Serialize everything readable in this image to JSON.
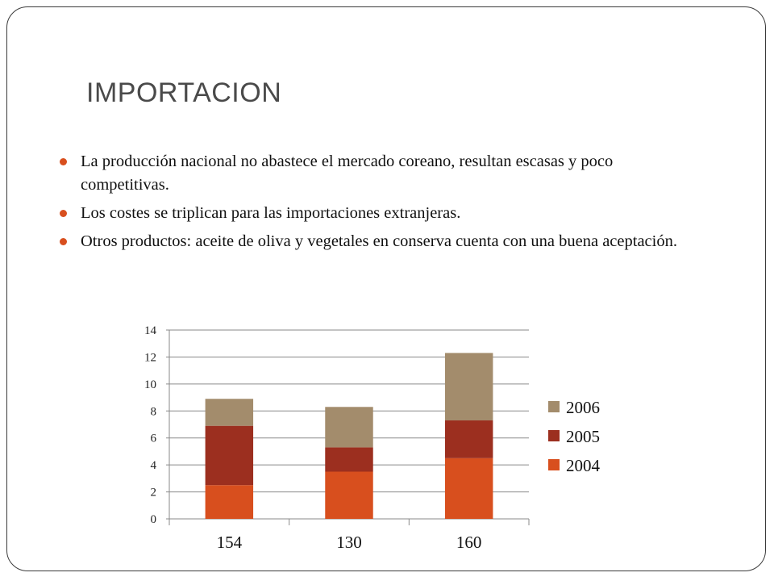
{
  "slide": {
    "title": "IMPORTACION",
    "bullets": [
      "La producción nacional no abastece el mercado coreano, resultan escasas y poco competitivas.",
      "Los costes se triplican para las importaciones extranjeras.",
      "Otros productos: aceite de oliva y vegetales en conserva cuenta con una buena aceptación."
    ],
    "accent_color": "#d84f1e"
  },
  "chart_data": {
    "type": "bar",
    "stacked": true,
    "categories": [
      "154",
      "130",
      "160"
    ],
    "series": [
      {
        "name": "2004",
        "values": [
          2.5,
          3.5,
          4.5
        ],
        "color": "#d84f1e"
      },
      {
        "name": "2005",
        "values": [
          4.4,
          1.8,
          2.8
        ],
        "color": "#9c2f1f"
      },
      {
        "name": "2006",
        "values": [
          2.0,
          3.0,
          5.0
        ],
        "color": "#a38c6c"
      }
    ],
    "ylim": [
      0,
      14
    ],
    "yticks": [
      0,
      2,
      4,
      6,
      8,
      10,
      12,
      14
    ],
    "grid": true,
    "legend_position": "right",
    "legend_order": [
      "2006",
      "2005",
      "2004"
    ]
  }
}
